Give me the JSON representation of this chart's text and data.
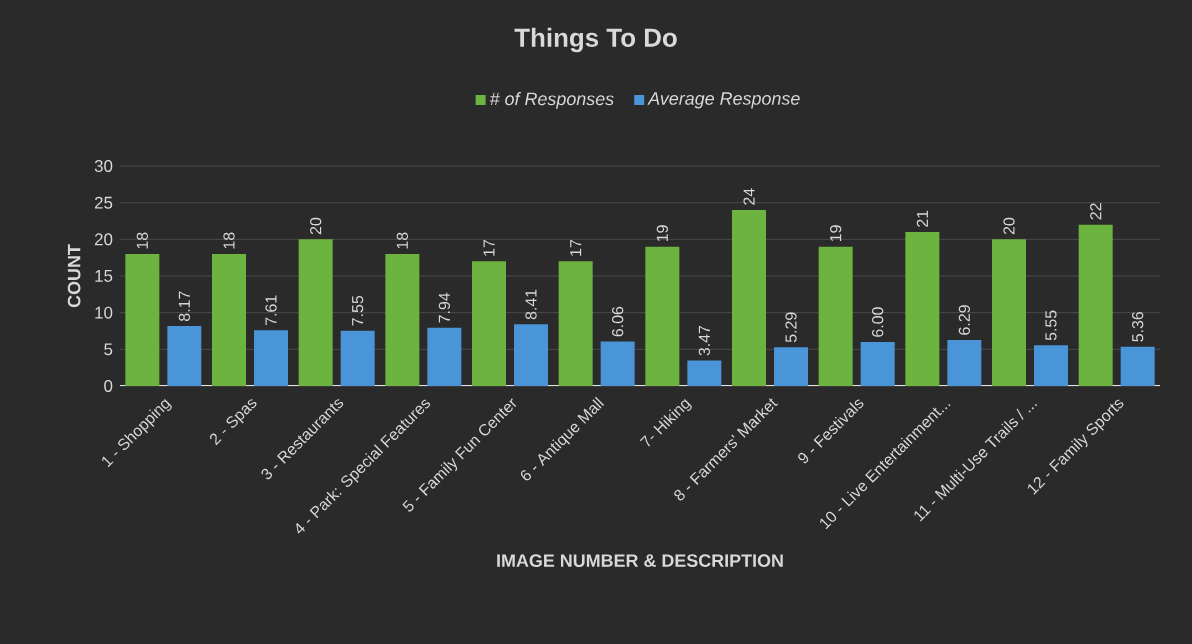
{
  "chart_data": {
    "type": "bar",
    "title": "Things To Do",
    "xlabel": "IMAGE NUMBER & DESCRIPTION",
    "ylabel": "COUNT",
    "categories": [
      "1 - Shopping",
      "2 - Spas",
      "3 - Restaurants",
      "4 - Park: Special Features",
      "5 - Family Fun Center",
      "6 - Antique Mall",
      "7- Hiking",
      "8 - Farmers' Market",
      "9 - Festivals",
      "10 - Live Entertainment...",
      "11 - Multi-Use Trails / ...",
      "12 - Family Sports"
    ],
    "series": [
      {
        "name": "# of Responses",
        "color": "#6db33f",
        "values": [
          18,
          18,
          20,
          18,
          17,
          17,
          19,
          24,
          19,
          21,
          20,
          22
        ],
        "value_labels": [
          "18",
          "18",
          "20",
          "18",
          "17",
          "17",
          "19",
          "24",
          "19",
          "21",
          "20",
          "22"
        ]
      },
      {
        "name": "Average Response",
        "color": "#4a94d8",
        "values": [
          8.17,
          7.61,
          7.55,
          7.94,
          8.41,
          6.06,
          3.47,
          5.29,
          6.0,
          6.29,
          5.55,
          5.36
        ],
        "value_labels": [
          "8.17",
          "7.61",
          "7.55",
          "7.94",
          "8.41",
          "6.06",
          "3.47",
          "5.29",
          "6.00",
          "6.29",
          "5.55",
          "5.36"
        ]
      }
    ],
    "ylim": [
      0,
      30
    ],
    "yticks": [
      0,
      5,
      10,
      15,
      20,
      25,
      30
    ],
    "grid": "y",
    "legend": "top"
  }
}
